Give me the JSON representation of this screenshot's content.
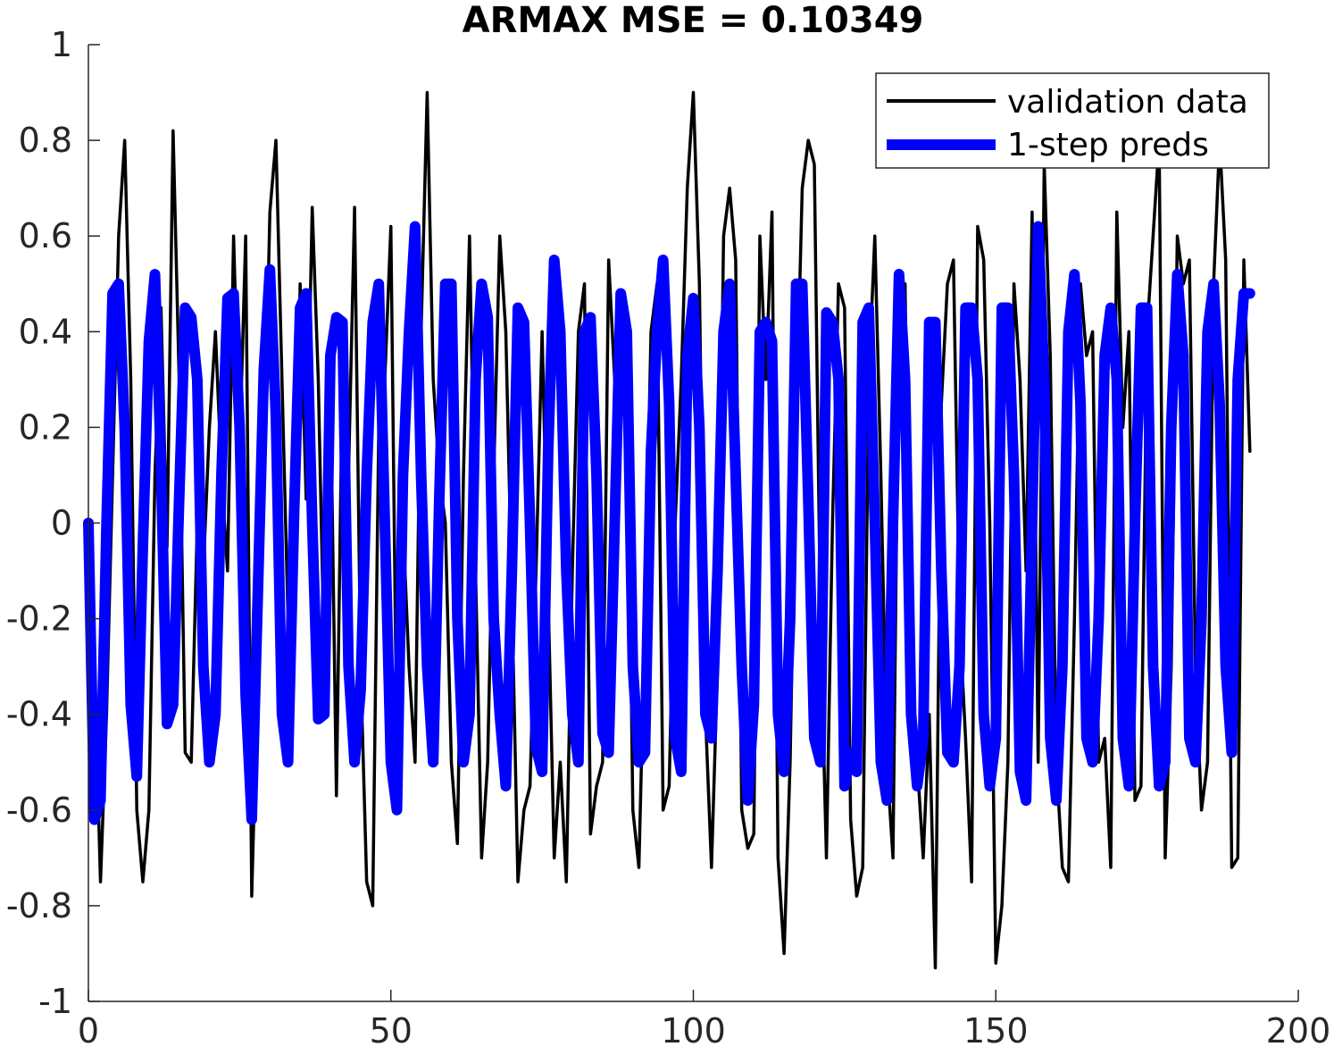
{
  "chart_data": {
    "type": "line",
    "title": "ARMAX MSE = 0.10349",
    "xlabel": "",
    "ylabel": "",
    "xlim": [
      0,
      200
    ],
    "ylim": [
      -1,
      1
    ],
    "xticks": [
      0,
      50,
      100,
      150,
      200
    ],
    "yticks": [
      -1,
      -0.8,
      -0.6,
      -0.4,
      -0.2,
      0,
      0.2,
      0.4,
      0.6,
      0.8,
      1
    ],
    "xtick_labels": [
      "0",
      "50",
      "100",
      "150",
      "200"
    ],
    "ytick_labels": [
      "-1",
      "-0.8",
      "-0.6",
      "-0.4",
      "-0.2",
      "0",
      "0.2",
      "0.4",
      "0.6",
      "0.8",
      "1"
    ],
    "grid": false,
    "legend_position": "top-right",
    "series": [
      {
        "name": "validation data",
        "color": "#000000",
        "values": [
          0,
          -0.3,
          -0.75,
          -0.4,
          0.1,
          0.6,
          0.8,
          0.3,
          -0.6,
          -0.75,
          -0.6,
          0.1,
          0.45,
          -0.05,
          0.82,
          0.3,
          -0.48,
          -0.5,
          0.0,
          -0.1,
          0.2,
          0.4,
          0.1,
          -0.1,
          0.6,
          0.15,
          0.6,
          -0.78,
          -0.3,
          0.1,
          0.65,
          0.8,
          0.3,
          -0.2,
          -0.15,
          0.5,
          0.05,
          0.66,
          0.3,
          -0.3,
          0.3,
          -0.57,
          0.32,
          0.1,
          0.66,
          -0.3,
          -0.75,
          -0.8,
          0.2,
          0.3,
          0.62,
          -0.5,
          0.0,
          -0.3,
          -0.5,
          0.4,
          0.9,
          0.3,
          0.1,
          0.0,
          -0.5,
          -0.67,
          0.1,
          0.6,
          -0.1,
          -0.7,
          -0.5,
          0.1,
          0.6,
          0.4,
          -0.15,
          -0.75,
          -0.6,
          -0.55,
          -0.1,
          0.4,
          -0.15,
          -0.7,
          -0.5,
          -0.75,
          -0.1,
          0.4,
          0.5,
          -0.65,
          -0.55,
          -0.5,
          0.55,
          0.3,
          0.4,
          0.35,
          -0.6,
          -0.72,
          -0.2,
          0.4,
          0.5,
          -0.6,
          -0.55,
          0.0,
          0.3,
          0.7,
          0.9,
          0.5,
          -0.4,
          -0.72,
          -0.3,
          0.6,
          0.7,
          0.55,
          -0.6,
          -0.68,
          -0.65,
          0.6,
          0.3,
          0.65,
          -0.7,
          -0.9,
          -0.5,
          0.2,
          0.7,
          0.8,
          0.75,
          -0.2,
          -0.7,
          0.0,
          0.5,
          0.45,
          -0.62,
          -0.78,
          -0.72,
          0.3,
          0.6,
          0.1,
          -0.5,
          -0.7,
          0.45,
          0.5,
          -0.4,
          -0.5,
          -0.7,
          -0.4,
          -0.93,
          0.25,
          0.5,
          0.55,
          -0.2,
          -0.45,
          -0.75,
          0.62,
          0.55,
          0.0,
          -0.92,
          -0.8,
          -0.5,
          0.5,
          0.3,
          -0.1,
          0.65,
          -0.5,
          0.75,
          0.35,
          -0.5,
          -0.72,
          -0.75,
          -0.2,
          0.5,
          0.35,
          0.4,
          -0.5,
          -0.45,
          -0.72,
          0.65,
          0.2,
          0.4,
          -0.58,
          -0.55,
          0.4,
          0.6,
          0.8,
          -0.7,
          -0.3,
          0.6,
          0.5,
          0.55,
          -0.3,
          -0.6,
          -0.5,
          0.5,
          0.8,
          0.55,
          -0.72,
          -0.7,
          0.55,
          0.15
        ]
      },
      {
        "name": "1-step preds",
        "color": "#0000ff",
        "values": [
          0,
          -0.62,
          -0.58,
          0.0,
          0.48,
          0.5,
          0.2,
          -0.38,
          -0.53,
          -0.05,
          0.38,
          0.52,
          0.12,
          -0.42,
          -0.38,
          0.05,
          0.45,
          0.43,
          0.3,
          -0.3,
          -0.5,
          -0.4,
          0.1,
          0.47,
          0.48,
          0.2,
          -0.36,
          -0.62,
          -0.15,
          0.32,
          0.53,
          0.22,
          -0.4,
          -0.5,
          0.02,
          0.45,
          0.48,
          0.0,
          -0.41,
          -0.4,
          0.35,
          0.43,
          0.42,
          -0.3,
          -0.5,
          -0.35,
          0.1,
          0.42,
          0.5,
          0.0,
          -0.5,
          -0.6,
          0.1,
          0.4,
          0.62,
          0.1,
          -0.3,
          -0.5,
          0.05,
          0.5,
          0.5,
          -0.2,
          -0.5,
          -0.4,
          0.3,
          0.5,
          0.43,
          -0.2,
          -0.4,
          -0.55,
          -0.1,
          0.45,
          0.42,
          0.0,
          -0.47,
          -0.52,
          0.15,
          0.55,
          0.4,
          -0.1,
          -0.4,
          -0.5,
          0.4,
          0.43,
          0.1,
          -0.44,
          -0.48,
          0.0,
          0.48,
          0.4,
          -0.3,
          -0.5,
          -0.48,
          0.15,
          0.4,
          0.55,
          0.25,
          -0.45,
          -0.52,
          0.35,
          0.47,
          0.2,
          -0.4,
          -0.45,
          -0.1,
          0.4,
          0.5,
          0.1,
          -0.3,
          -0.58,
          -0.38,
          0.4,
          0.42,
          0.38,
          -0.4,
          -0.52,
          -0.2,
          0.5,
          0.5,
          0.05,
          -0.45,
          -0.5,
          0.44,
          0.42,
          0.3,
          -0.55,
          -0.48,
          -0.52,
          0.42,
          0.45,
          0.0,
          -0.5,
          -0.58,
          0.0,
          0.52,
          0.3,
          -0.4,
          -0.55,
          -0.45,
          0.42,
          0.42,
          -0.1,
          -0.48,
          -0.5,
          -0.3,
          0.45,
          0.45,
          0.3,
          -0.4,
          -0.55,
          -0.45,
          0.45,
          0.45,
          0.1,
          -0.52,
          -0.58,
          0.0,
          0.62,
          0.3,
          -0.45,
          -0.58,
          -0.3,
          0.4,
          0.52,
          0.25,
          -0.45,
          -0.5,
          -0.2,
          0.35,
          0.45,
          0.3,
          -0.45,
          -0.55,
          0.0,
          0.45,
          0.45,
          -0.3,
          -0.55,
          -0.5,
          0.2,
          0.52,
          0.35,
          -0.45,
          -0.5,
          -0.2,
          0.4,
          0.5,
          0.25,
          -0.3,
          -0.48,
          0.3,
          0.48,
          0.48
        ]
      }
    ]
  }
}
